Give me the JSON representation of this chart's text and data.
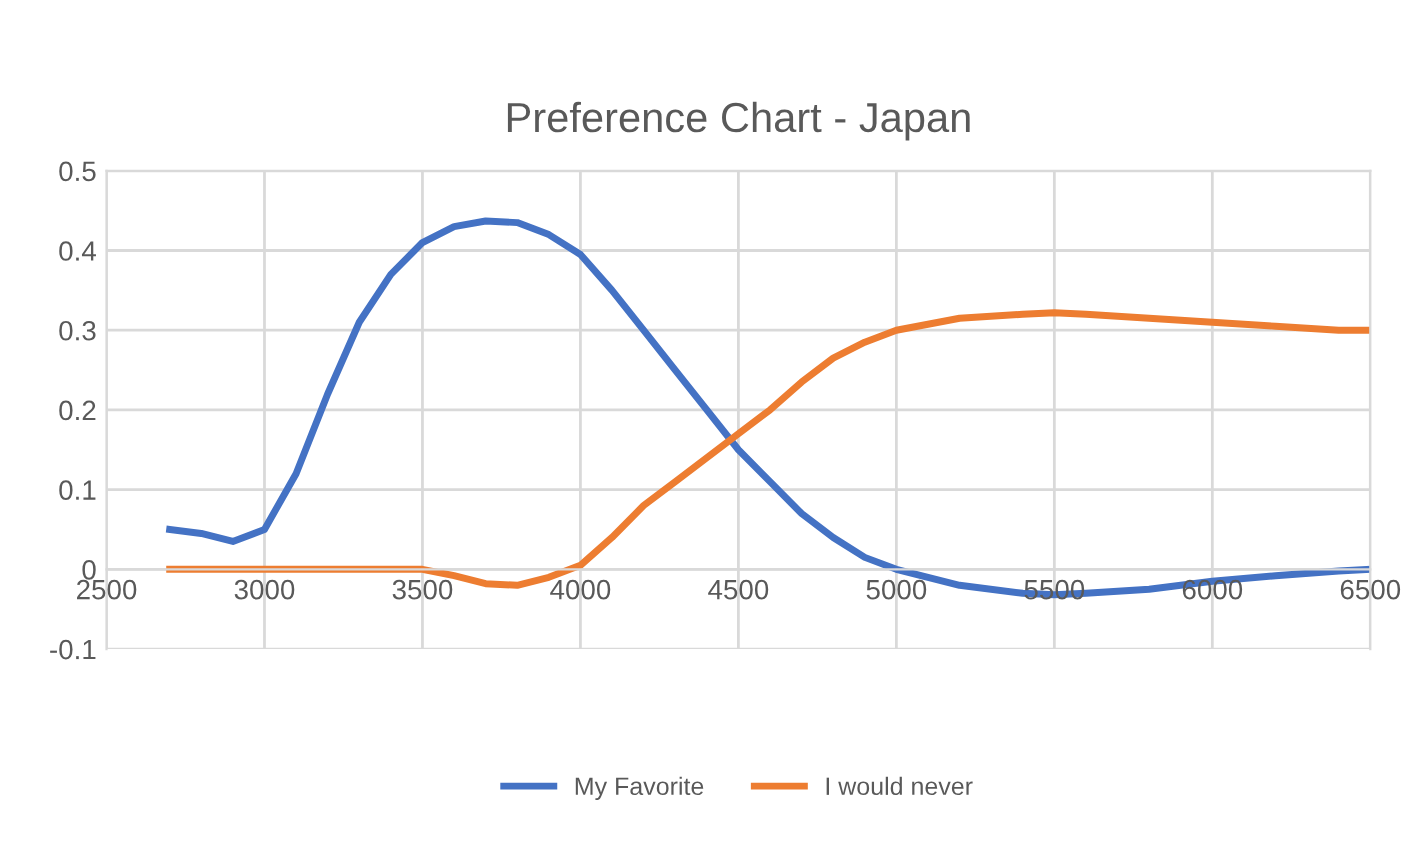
{
  "chart_data": {
    "type": "line",
    "title": "Preference Chart - Japan",
    "xlim": [
      2500,
      6500
    ],
    "xticks": [
      2500,
      3000,
      3500,
      4000,
      4500,
      5000,
      5500,
      6000,
      6500
    ],
    "ylim": [
      -0.1,
      0.5
    ],
    "yticks": [
      -0.1,
      0,
      0.1,
      0.2,
      0.3,
      0.4,
      0.5
    ],
    "grid": true,
    "legend": "bottom",
    "marker": "none",
    "line_style": "solid",
    "series": [
      {
        "name": "My Favorite",
        "color": "#4472c4",
        "x": [
          2700,
          2800,
          2900,
          3000,
          3100,
          3200,
          3300,
          3400,
          3500,
          3600,
          3700,
          3800,
          3900,
          4000,
          4100,
          4200,
          4300,
          4400,
          4500,
          4600,
          4700,
          4800,
          4900,
          5000,
          5200,
          5400,
          5500,
          5600,
          5800,
          6000,
          6200,
          6400,
          6500
        ],
        "values": [
          0.05,
          0.045,
          0.035,
          0.05,
          0.12,
          0.22,
          0.31,
          0.37,
          0.41,
          0.43,
          0.437,
          0.435,
          0.42,
          0.395,
          0.35,
          0.3,
          0.25,
          0.2,
          0.15,
          0.11,
          0.07,
          0.04,
          0.015,
          0,
          -0.02,
          -0.03,
          -0.032,
          -0.03,
          -0.025,
          -0.015,
          -0.008,
          -0.002,
          0
        ]
      },
      {
        "name": "I would never",
        "color": "#ed7d31",
        "x": [
          2700,
          3000,
          3500,
          3600,
          3700,
          3800,
          3900,
          4000,
          4100,
          4200,
          4300,
          4400,
          4500,
          4600,
          4700,
          4800,
          4900,
          5000,
          5200,
          5400,
          5500,
          5600,
          5800,
          6000,
          6200,
          6400,
          6500
        ],
        "values": [
          0,
          0,
          0,
          -0.008,
          -0.018,
          -0.02,
          -0.01,
          0.005,
          0.04,
          0.08,
          0.11,
          0.14,
          0.17,
          0.2,
          0.235,
          0.265,
          0.285,
          0.3,
          0.315,
          0.32,
          0.322,
          0.32,
          0.315,
          0.31,
          0.305,
          0.3,
          0.3
        ]
      }
    ]
  }
}
